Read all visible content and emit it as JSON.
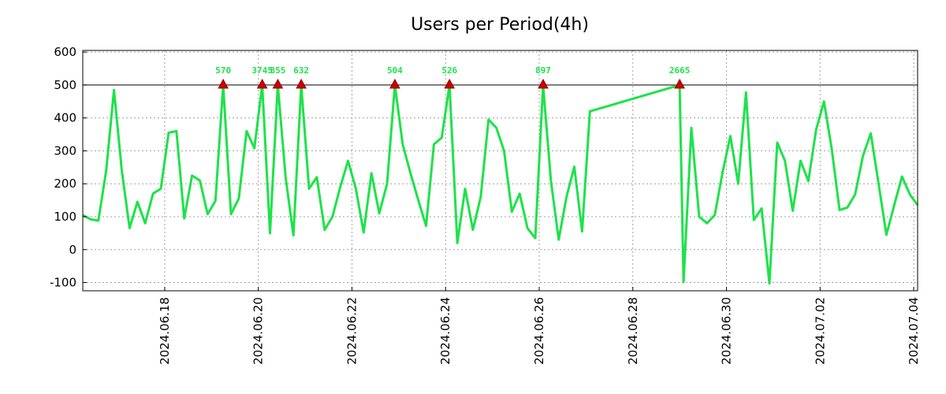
{
  "colors": {
    "line": "#1ee24a",
    "marker": "#cc0000",
    "axis": "#000000",
    "grid": "#a0a0a0"
  },
  "chart_data": {
    "type": "line",
    "title": "Users per Period(4h)",
    "xlabel": "",
    "ylabel": "",
    "grid": true,
    "ylim": [
      -125,
      605
    ],
    "xlim": [
      0,
      107
    ],
    "yticks": [
      600,
      500,
      400,
      300,
      200,
      100,
      0,
      -100
    ],
    "ytick_labels": [
      "600",
      "500",
      "400",
      "300",
      "200",
      "100",
      "0",
      "-100"
    ],
    "xticks": [
      {
        "label": "2024.06.18",
        "x": 10.5
      },
      {
        "label": "2024.06.20",
        "x": 22.5
      },
      {
        "label": "2024.06.22",
        "x": 34.5
      },
      {
        "label": "2024.06.24",
        "x": 46.5
      },
      {
        "label": "2024.06.26",
        "x": 58.5
      },
      {
        "label": "2024.06.28",
        "x": 70.5
      },
      {
        "label": "2024.06.30",
        "x": 82.5
      },
      {
        "label": "2024.07.02",
        "x": 94.5
      },
      {
        "label": "2024.07.04",
        "x": 106.5
      }
    ],
    "clip_value": 500,
    "points": [
      [
        0,
        105
      ],
      [
        1,
        92
      ],
      [
        2,
        88
      ],
      [
        3,
        240
      ],
      [
        4,
        485
      ],
      [
        5,
        240
      ],
      [
        6,
        65
      ],
      [
        7,
        145
      ],
      [
        8,
        80
      ],
      [
        9,
        170
      ],
      [
        10,
        185
      ],
      [
        11,
        355
      ],
      [
        12,
        360
      ],
      [
        13,
        95
      ],
      [
        14,
        225
      ],
      [
        15,
        210
      ],
      [
        16,
        108
      ],
      [
        17,
        148
      ],
      [
        18,
        500
      ],
      [
        19,
        108
      ],
      [
        20,
        155
      ],
      [
        21,
        360
      ],
      [
        22,
        308
      ],
      [
        23,
        500
      ],
      [
        24,
        50
      ],
      [
        25,
        500
      ],
      [
        26,
        220
      ],
      [
        27,
        43
      ],
      [
        28,
        500
      ],
      [
        29,
        185
      ],
      [
        30,
        220
      ],
      [
        31,
        60
      ],
      [
        32,
        100
      ],
      [
        33,
        190
      ],
      [
        34,
        270
      ],
      [
        35,
        185
      ],
      [
        36,
        52
      ],
      [
        37,
        232
      ],
      [
        38,
        110
      ],
      [
        39,
        200
      ],
      [
        40,
        500
      ],
      [
        41,
        320
      ],
      [
        42,
        232
      ],
      [
        43,
        150
      ],
      [
        44,
        72
      ],
      [
        45,
        320
      ],
      [
        46,
        340
      ],
      [
        47,
        500
      ],
      [
        48,
        20
      ],
      [
        49,
        185
      ],
      [
        50,
        60
      ],
      [
        51,
        160
      ],
      [
        52,
        395
      ],
      [
        53,
        370
      ],
      [
        54,
        300
      ],
      [
        55,
        115
      ],
      [
        56,
        170
      ],
      [
        57,
        65
      ],
      [
        58,
        35
      ],
      [
        59,
        500
      ],
      [
        60,
        210
      ],
      [
        61,
        30
      ],
      [
        62,
        160
      ],
      [
        63,
        252
      ],
      [
        64,
        55
      ],
      [
        65,
        420
      ],
      [
        76.5,
        500
      ],
      [
        77,
        -98
      ],
      [
        78,
        370
      ],
      [
        79,
        100
      ],
      [
        80,
        80
      ],
      [
        81,
        105
      ],
      [
        82,
        235
      ],
      [
        83,
        345
      ],
      [
        84,
        200
      ],
      [
        85,
        478
      ],
      [
        86,
        90
      ],
      [
        87,
        125
      ],
      [
        88,
        -103
      ],
      [
        89,
        325
      ],
      [
        90,
        270
      ],
      [
        91,
        118
      ],
      [
        92,
        270
      ],
      [
        93,
        208
      ],
      [
        94,
        365
      ],
      [
        95,
        450
      ],
      [
        96,
        305
      ],
      [
        97,
        120
      ],
      [
        98,
        128
      ],
      [
        99,
        168
      ],
      [
        100,
        285
      ],
      [
        101,
        353
      ],
      [
        102,
        200
      ],
      [
        103,
        45
      ],
      [
        104,
        135
      ],
      [
        105,
        222
      ],
      [
        106,
        168
      ],
      [
        107,
        135
      ]
    ],
    "annotations": [
      {
        "x": 18,
        "label": "570",
        "value": 570
      },
      {
        "x": 23,
        "label": "3745",
        "value": 3745
      },
      {
        "x": 25,
        "label": "855",
        "value": 855
      },
      {
        "x": 28,
        "label": "632",
        "value": 632
      },
      {
        "x": 40,
        "label": "504",
        "value": 504
      },
      {
        "x": 47,
        "label": "526",
        "value": 526
      },
      {
        "x": 59,
        "label": "897",
        "value": 897
      },
      {
        "x": 76.5,
        "label": "2665",
        "value": 2665
      }
    ]
  }
}
